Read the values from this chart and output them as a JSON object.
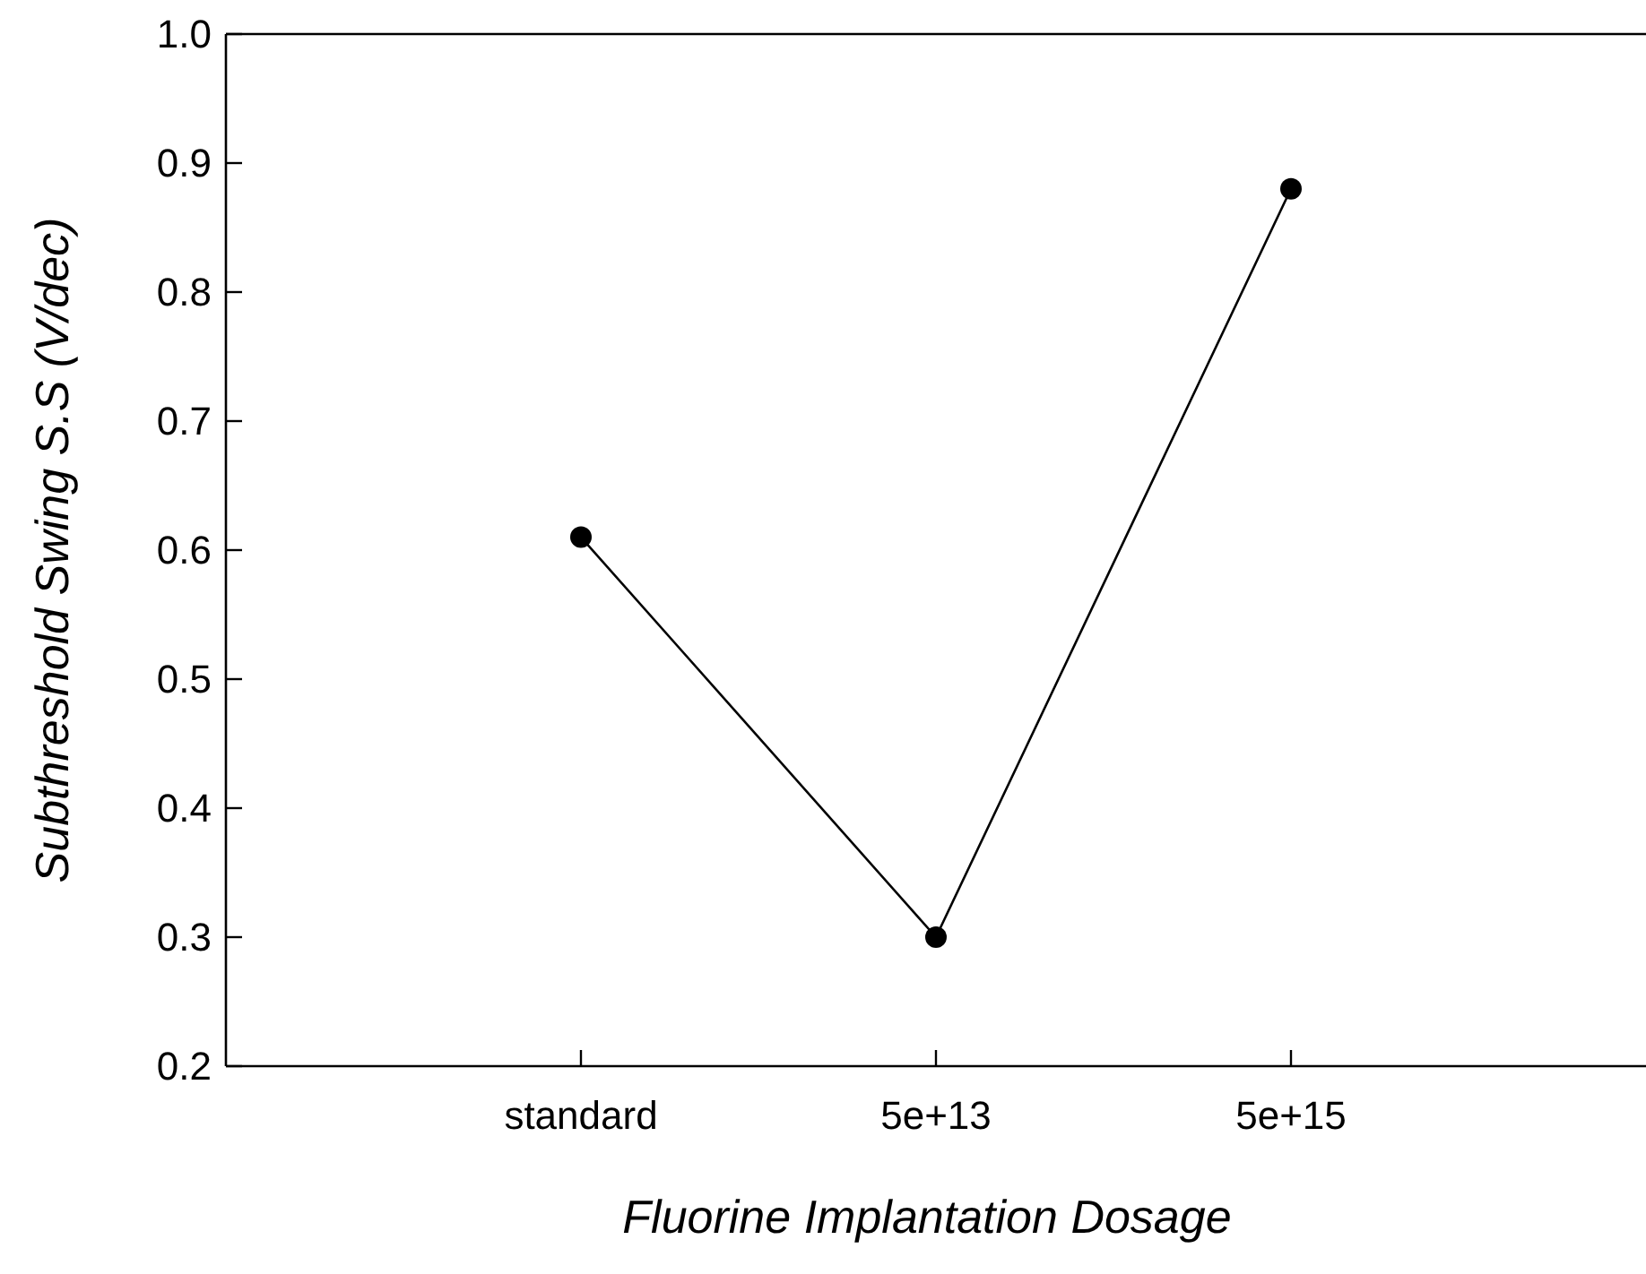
{
  "chart_data": {
    "type": "line",
    "xlabel": "Fluorine Implantation Dosage",
    "ylabel": "Subthreshold Swing S.S (V/dec)",
    "categories": [
      "standard",
      "5e+13",
      "5e+15"
    ],
    "series": [
      {
        "color": "#000000",
        "values": [
          0.61,
          0.3,
          0.88
        ]
      }
    ],
    "ylim": [
      0.2,
      1.0
    ],
    "yticks": [
      0.2,
      0.3,
      0.4,
      0.5,
      0.6,
      0.7,
      0.8,
      0.9,
      {
        "value": 1.0,
        "label": "1.0"
      }
    ],
    "marker": "circle",
    "line_style": "solid"
  }
}
